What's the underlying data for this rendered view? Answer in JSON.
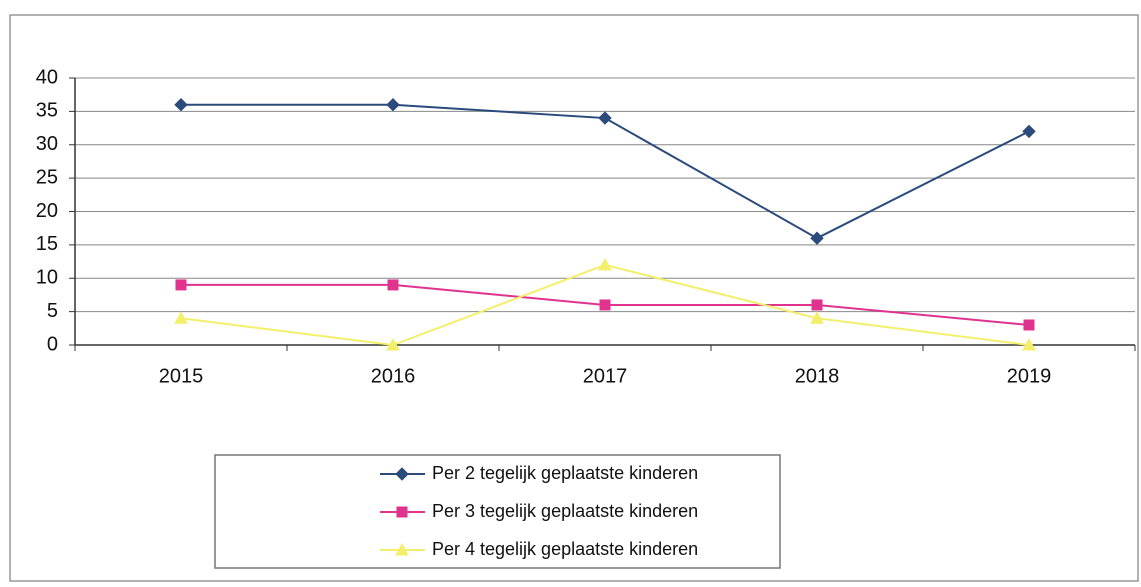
{
  "chart_data": {
    "type": "line",
    "categories": [
      "2015",
      "2016",
      "2017",
      "2018",
      "2019"
    ],
    "series": [
      {
        "name": "Per 2 tegelijk geplaatste kinderen",
        "color": "#2b4b7c",
        "marker": "diamond",
        "values": [
          36,
          36,
          34,
          16,
          32
        ]
      },
      {
        "name": "Per 3 tegelijk geplaatste kinderen",
        "color": "#e0338e",
        "marker": "square",
        "values": [
          9,
          9,
          6,
          6,
          3
        ]
      },
      {
        "name": "Per 4 tegelijk geplaatste kinderen",
        "color": "#f4ef6a",
        "marker": "triangle",
        "values": [
          4,
          0,
          12,
          4,
          0
        ]
      }
    ],
    "ylim": [
      0,
      40
    ],
    "yticks": [
      0,
      5,
      10,
      15,
      20,
      25,
      30,
      35,
      40
    ],
    "grid": true,
    "legend": "bottom"
  }
}
